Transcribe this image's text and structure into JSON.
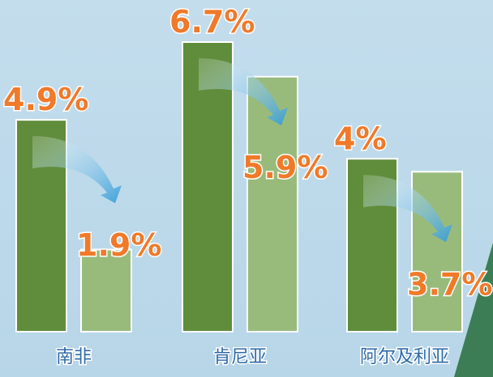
{
  "chart_data": {
    "type": "bar",
    "categories": [
      "南非",
      "肯尼亚",
      "阿尔及利亚"
    ],
    "series": [
      {
        "color": "#5f8d3b",
        "values": [
          4.9,
          6.7,
          4
        ],
        "value_labels": [
          "4.9%",
          "6.7%",
          "4%"
        ]
      },
      {
        "color": "#98bb7c",
        "values": [
          1.9,
          5.9,
          3.7
        ],
        "value_labels": [
          "1.9%",
          "5.9%",
          "3.7%"
        ]
      }
    ]
  }
}
